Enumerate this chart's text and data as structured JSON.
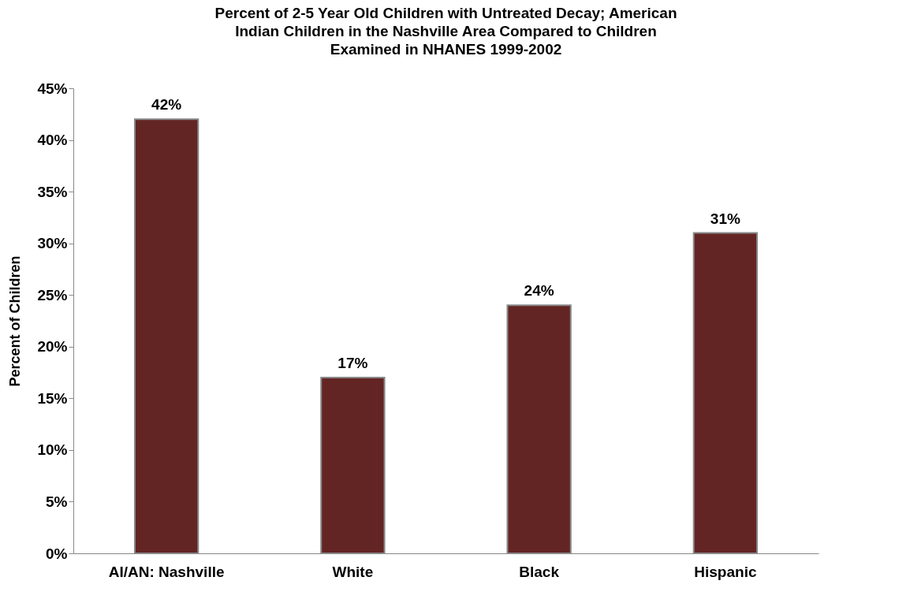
{
  "chart_data": {
    "type": "bar",
    "title": "Percent of 2-5 Year Old Children with Untreated Decay; American Indian Children in the Nashville Area Compared to Children Examined in NHANES 1999-2002",
    "ylabel": "Percent of Children",
    "categories": [
      "AI/AN: Nashville",
      "White",
      "Black",
      "Hispanic"
    ],
    "values": [
      42,
      17,
      24,
      31
    ],
    "value_labels": [
      "42%",
      "17%",
      "24%",
      "31%"
    ],
    "color": "#632523",
    "ylim": [
      0,
      45
    ],
    "yticks": [
      {
        "value": 0,
        "label": "0%"
      },
      {
        "value": 5,
        "label": "5%"
      },
      {
        "value": 10,
        "label": "10%"
      },
      {
        "value": 15,
        "label": "15%"
      },
      {
        "value": 20,
        "label": "20%"
      },
      {
        "value": 25,
        "label": "25%"
      },
      {
        "value": 30,
        "label": "30%"
      },
      {
        "value": 35,
        "label": "35%"
      },
      {
        "value": 40,
        "label": "40%"
      },
      {
        "value": 45,
        "label": "45%"
      }
    ],
    "grid": false
  }
}
